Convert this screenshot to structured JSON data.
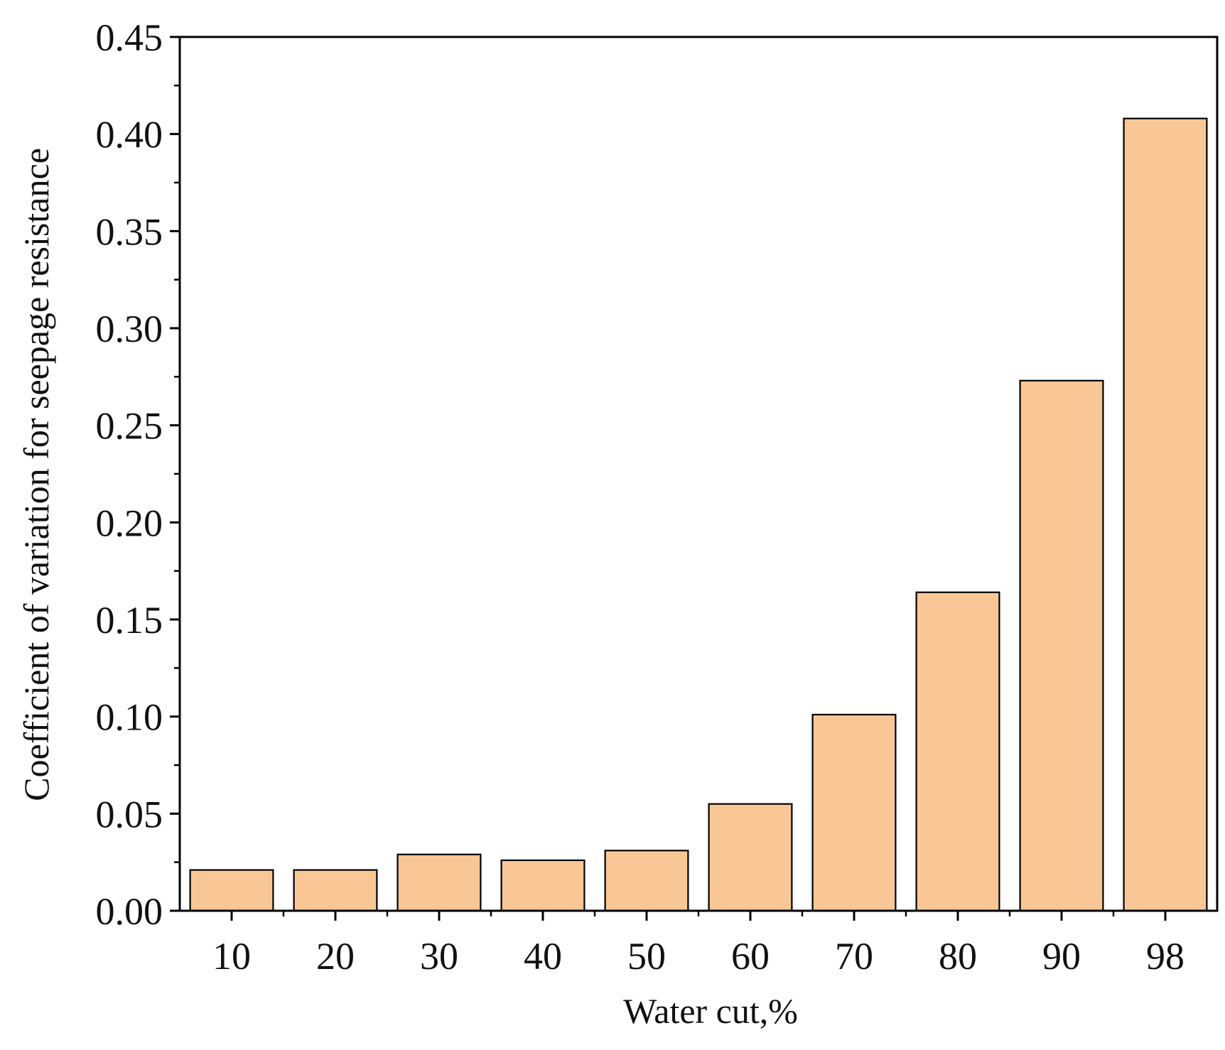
{
  "chart_data": {
    "type": "bar",
    "title": "",
    "xlabel": "Water cut,%",
    "ylabel": "Coefficient of variation for seepage resistance",
    "categories": [
      "10",
      "20",
      "30",
      "40",
      "50",
      "60",
      "70",
      "80",
      "90",
      "98"
    ],
    "values": [
      0.021,
      0.021,
      0.029,
      0.026,
      0.031,
      0.055,
      0.101,
      0.164,
      0.273,
      0.408
    ],
    "ylim": [
      0,
      0.45
    ],
    "yticks": [
      "0.00",
      "0.05",
      "0.10",
      "0.15",
      "0.20",
      "0.25",
      "0.30",
      "0.35",
      "0.40",
      "0.45"
    ],
    "grid": false,
    "legend": "none",
    "bar_color": "#F9C796",
    "bar_edge_color": "#000000"
  }
}
